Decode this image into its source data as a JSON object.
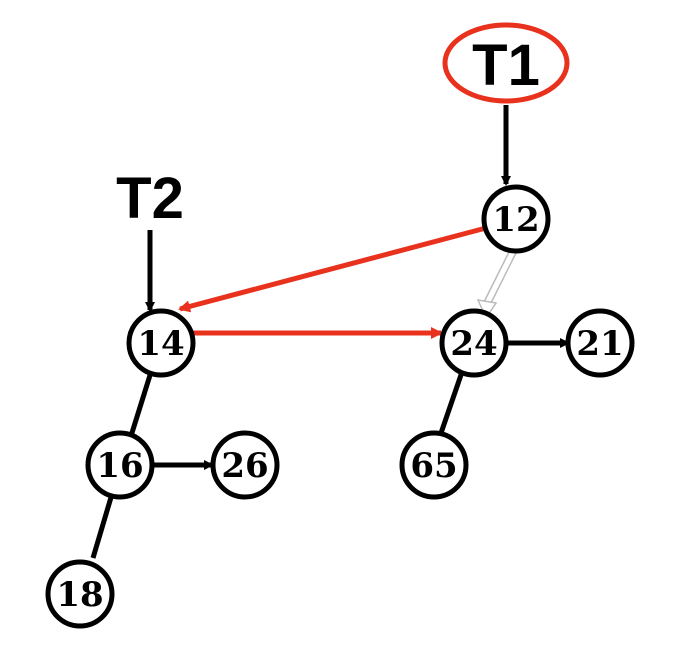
{
  "colors": {
    "black": "#000000",
    "highlight": "#e8321e",
    "hollow": "#bbbbbb"
  },
  "labels": {
    "t1": "T1",
    "t2": "T2"
  },
  "nodes": {
    "n12": "12",
    "n14": "14",
    "n24": "24",
    "n21": "21",
    "n16": "16",
    "n26": "26",
    "n65": "65",
    "n18": "18"
  }
}
